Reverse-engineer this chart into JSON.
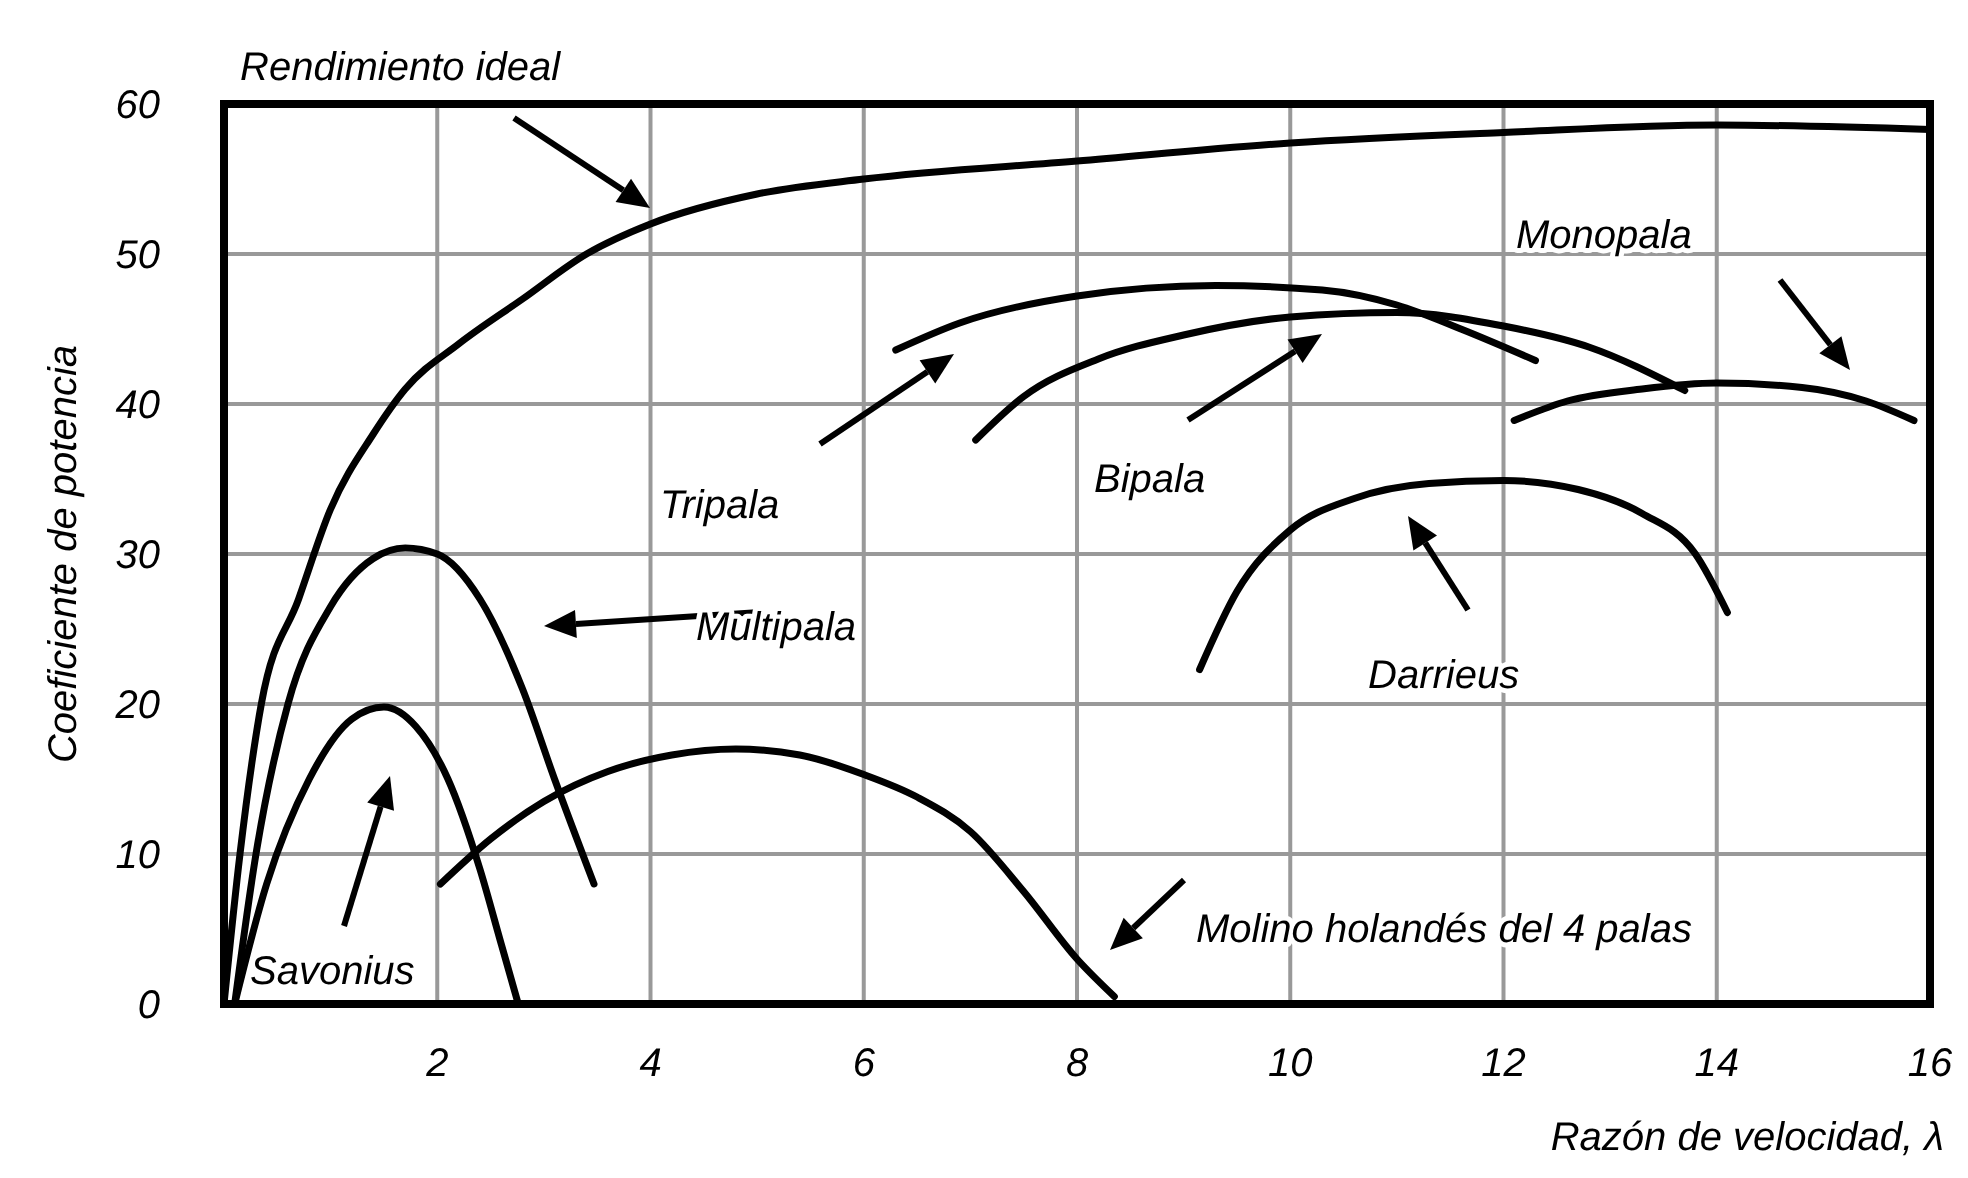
{
  "chart_data": {
    "type": "line",
    "xlabel": "Razón de velocidad, λ",
    "ylabel": "Coeficiente de potencia",
    "xlim": [
      0,
      16
    ],
    "ylim": [
      0,
      60
    ],
    "xticks": [
      2,
      4,
      6,
      8,
      10,
      12,
      14,
      16
    ],
    "yticks": [
      0,
      10,
      20,
      30,
      40,
      50,
      60
    ],
    "grid": true,
    "line_style": "solid",
    "series": [
      {
        "color": "#000000",
        "x": [
          0,
          0.15,
          0.35,
          0.7,
          1,
          1.4,
          1.7,
          2.2,
          2.8,
          3.4,
          4,
          5,
          6,
          8,
          10,
          12,
          14,
          16
        ],
        "values": [
          0,
          10,
          20,
          27,
          33,
          38,
          41,
          44,
          47,
          50,
          52,
          54,
          55,
          56.2,
          57.4,
          58.1,
          58.6,
          58.3
        ]
      },
      {
        "color": "#000000",
        "x": [
          0.1,
          0.3,
          0.6,
          1,
          1.4,
          1.7,
          2,
          2.4,
          2.8,
          3.1,
          3.47
        ],
        "values": [
          0,
          10,
          20,
          26.5,
          29.7,
          30.4,
          30,
          27,
          21,
          15,
          8
        ]
      },
      {
        "color": "#000000",
        "x": [
          0.1,
          0.4,
          0.8,
          1.2,
          1.5,
          1.8,
          2.1,
          2.4,
          2.6,
          2.76
        ],
        "values": [
          0,
          8,
          15,
          19,
          19.8,
          18.5,
          15,
          9,
          4,
          0
        ]
      },
      {
        "color": "#000000",
        "x": [
          2.03,
          2.5,
          3,
          3.6,
          4.2,
          4.8,
          5.4,
          6,
          6.5,
          7,
          7.5,
          8,
          8.35
        ],
        "values": [
          8,
          11,
          13.5,
          15.5,
          16.6,
          17,
          16.6,
          15.3,
          13.8,
          11.5,
          7.5,
          3,
          0.5
        ]
      },
      {
        "color": "#000000",
        "x": [
          6.3,
          6.9,
          8,
          9.3,
          10.3,
          11,
          11.6,
          12.3
        ],
        "values": [
          43.6,
          45.4,
          47.2,
          47.9,
          47.6,
          46.6,
          45,
          42.9
        ]
      },
      {
        "color": "#000000",
        "x": [
          7.05,
          7.5,
          8.2,
          9,
          10,
          11,
          12,
          12.8,
          13.7
        ],
        "values": [
          37.6,
          40.5,
          43,
          44.6,
          45.8,
          46.1,
          45.2,
          43.8,
          40.9
        ]
      },
      {
        "color": "#000000",
        "x": [
          12.1,
          12.6,
          13.3,
          14,
          14.8,
          15.4,
          15.85
        ],
        "values": [
          38.9,
          40.2,
          41,
          41.4,
          41.1,
          40.2,
          38.9
        ]
      },
      {
        "color": "#000000",
        "x": [
          9.15,
          9.5,
          10,
          10.6,
          11.3,
          12,
          12.7,
          13.3,
          13.8,
          14.1
        ],
        "values": [
          22.3,
          27.5,
          31.6,
          33.7,
          34.7,
          34.9,
          34.3,
          32.7,
          30,
          26.1
        ]
      }
    ],
    "annotations": [
      "Rendimiento ideal",
      "Multipala",
      "Savonius",
      "Molino holandés del 4 palas",
      "Tripala",
      "Bipala",
      "Monopala",
      "Darrieus"
    ]
  }
}
